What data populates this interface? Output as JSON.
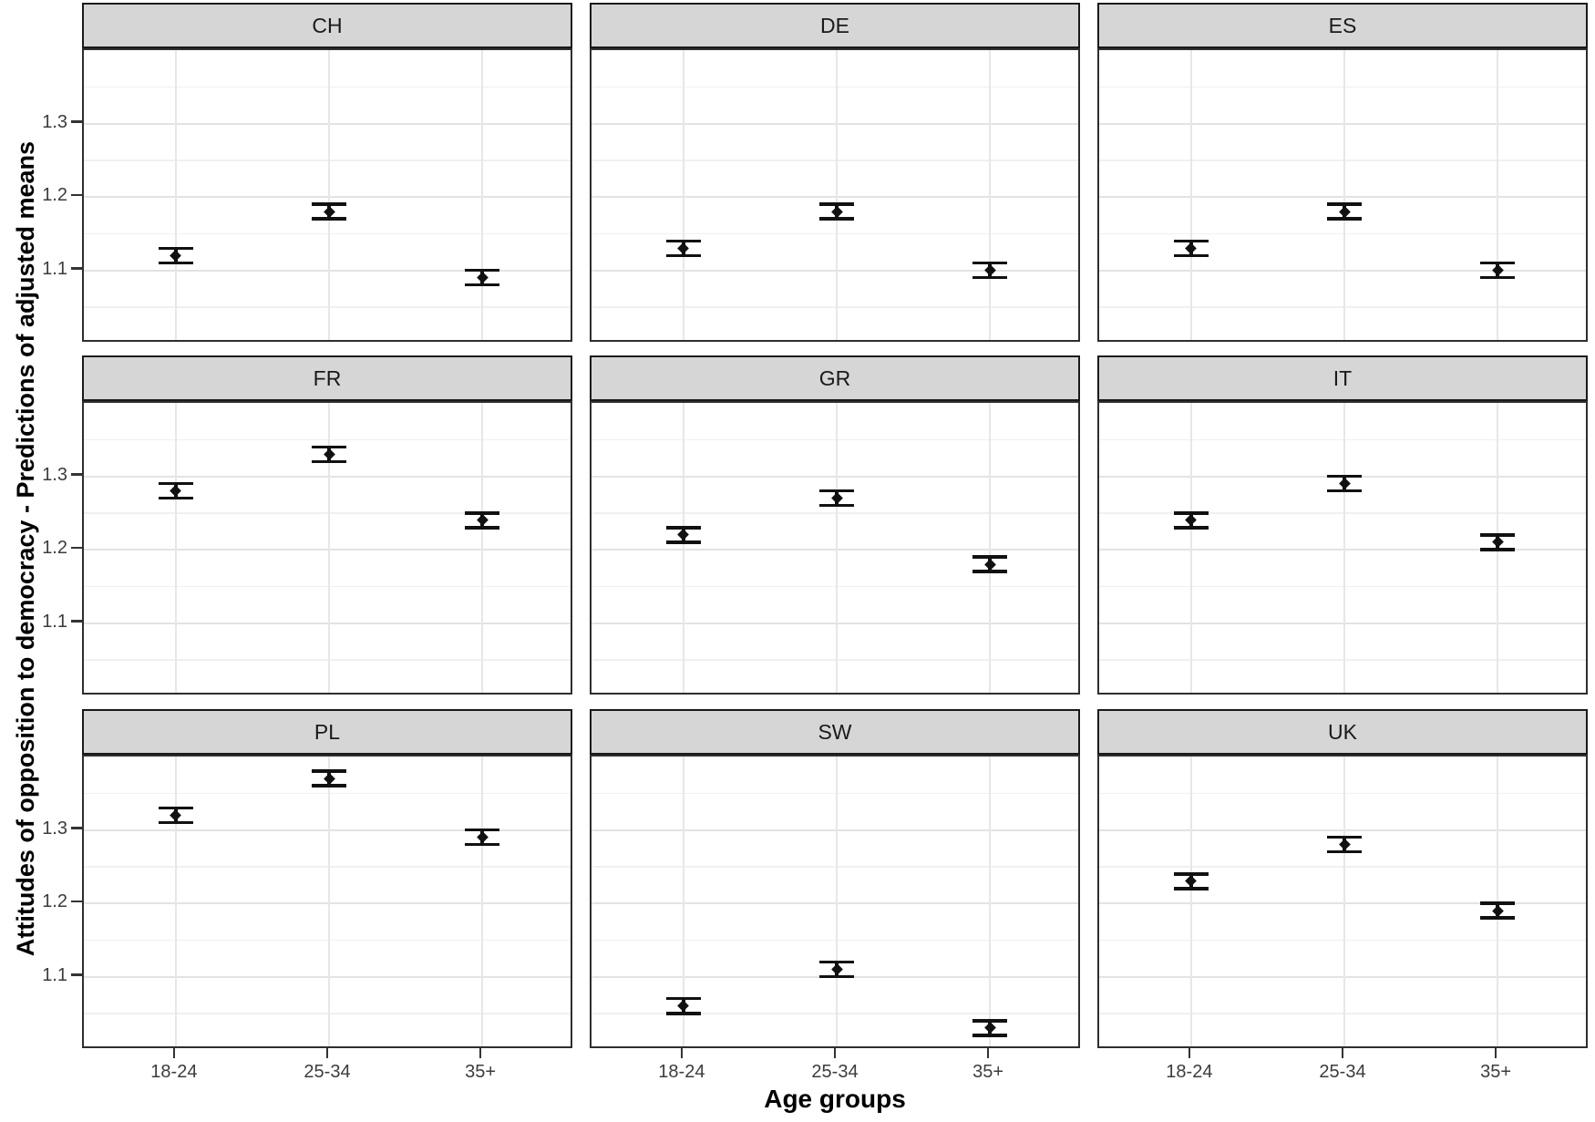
{
  "chart_data": {
    "type": "scatter",
    "subtype": "faceted-pointrange",
    "title": "",
    "xlabel": "Age groups",
    "ylabel": "Attitudes of opposition to democracy - Predictions of adjusted means",
    "categories": [
      "18-24",
      "25-34",
      "35+"
    ],
    "y_tick_labels": [
      "1.1",
      "1.2",
      "1.3"
    ],
    "y_major_ticks": [
      1.1,
      1.2,
      1.3
    ],
    "y_minor_ticks": [
      1.05,
      1.15,
      1.25,
      1.35
    ],
    "ylim": [
      1.0,
      1.4
    ],
    "grid": "on",
    "legend": "none",
    "panels": [
      {
        "label": "CH",
        "means": [
          1.12,
          1.18,
          1.09
        ],
        "lower": [
          1.11,
          1.17,
          1.08
        ],
        "upper": [
          1.13,
          1.19,
          1.1
        ]
      },
      {
        "label": "DE",
        "means": [
          1.13,
          1.18,
          1.1
        ],
        "lower": [
          1.12,
          1.17,
          1.09
        ],
        "upper": [
          1.14,
          1.19,
          1.11
        ]
      },
      {
        "label": "ES",
        "means": [
          1.13,
          1.18,
          1.1
        ],
        "lower": [
          1.12,
          1.17,
          1.09
        ],
        "upper": [
          1.14,
          1.19,
          1.11
        ]
      },
      {
        "label": "FR",
        "means": [
          1.28,
          1.33,
          1.24
        ],
        "lower": [
          1.27,
          1.32,
          1.23
        ],
        "upper": [
          1.29,
          1.34,
          1.25
        ]
      },
      {
        "label": "GR",
        "means": [
          1.22,
          1.27,
          1.18
        ],
        "lower": [
          1.21,
          1.26,
          1.17
        ],
        "upper": [
          1.23,
          1.28,
          1.19
        ]
      },
      {
        "label": "IT",
        "means": [
          1.24,
          1.29,
          1.21
        ],
        "lower": [
          1.23,
          1.28,
          1.2
        ],
        "upper": [
          1.25,
          1.3,
          1.22
        ]
      },
      {
        "label": "PL",
        "means": [
          1.32,
          1.37,
          1.29
        ],
        "lower": [
          1.31,
          1.36,
          1.28
        ],
        "upper": [
          1.33,
          1.38,
          1.3
        ]
      },
      {
        "label": "SW",
        "means": [
          1.06,
          1.11,
          1.03
        ],
        "lower": [
          1.05,
          1.1,
          1.02
        ],
        "upper": [
          1.07,
          1.12,
          1.04
        ]
      },
      {
        "label": "UK",
        "means": [
          1.23,
          1.28,
          1.19
        ],
        "lower": [
          1.22,
          1.27,
          1.18
        ],
        "upper": [
          1.24,
          1.29,
          1.2
        ]
      }
    ],
    "colors": {
      "strip_fill": "#d6d6d6",
      "strip_border": "#1a1a1a",
      "panel_border": "#2e2e2e",
      "grid_major": "#e3e3e3",
      "grid_minor": "#f0f0f0",
      "point": "#111111",
      "tick_label": "#3c3c3c",
      "axis_title": "#000000"
    }
  }
}
